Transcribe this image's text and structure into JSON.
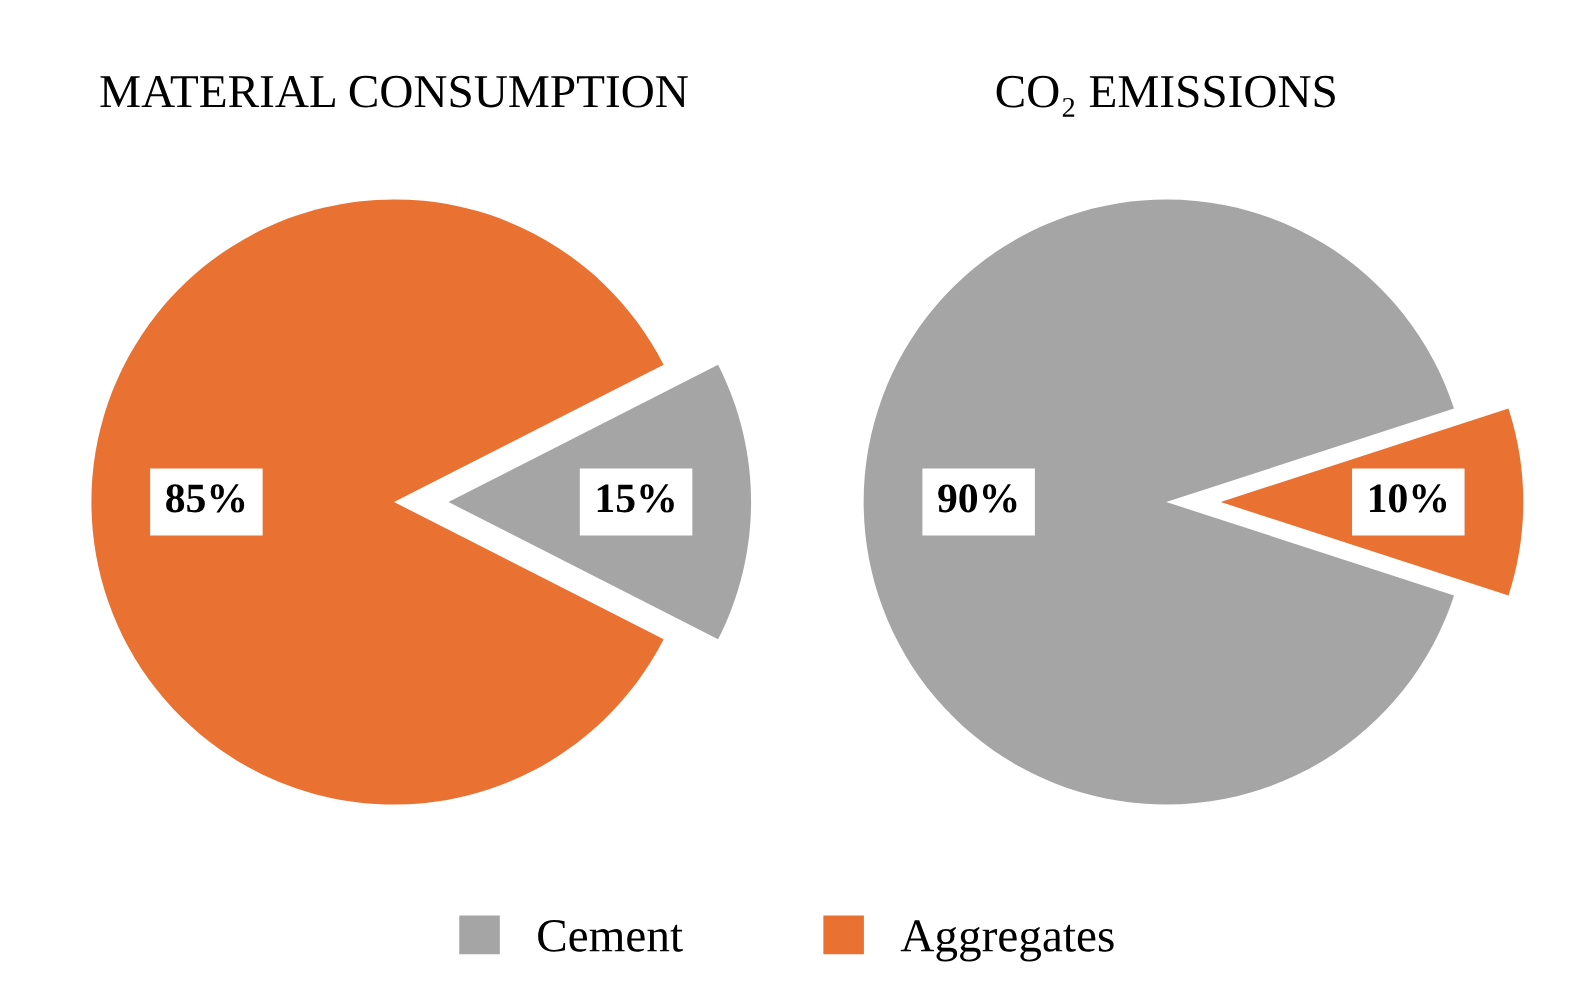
{
  "chart_data": [
    {
      "type": "pie",
      "title": "MATERIAL CONSUMPTION",
      "categories": [
        "Cement",
        "Aggregates"
      ],
      "values": [
        15,
        85
      ],
      "colors": [
        "#a5a5a5",
        "#e97132"
      ],
      "value_labels": [
        "15%",
        "85%"
      ],
      "legend": "bottom"
    },
    {
      "type": "pie",
      "title": "CO₂ EMISSIONS",
      "categories": [
        null,
        null
      ],
      "values": [
        90,
        10
      ],
      "colors": [
        "#a5a5a5",
        "#e97132"
      ],
      "value_labels": [
        "90%",
        "10%"
      ]
    }
  ]
}
